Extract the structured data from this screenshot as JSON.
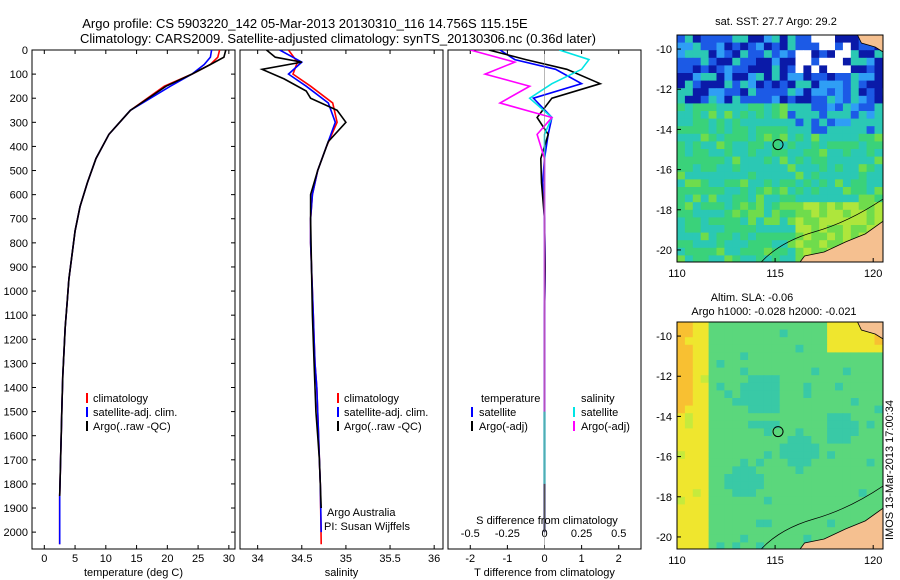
{
  "header": {
    "title_line1": "Argo profile: CS 5903220_142 05-Mar-2013 20130310_116 14.756S 115.15E",
    "title_line2": "Climatology: CARS2009. Satellite-adjusted climatology: synTS_20130306.nc (0.36d later)"
  },
  "side_label": "IMOS 13-Mar-2013 17:00:34",
  "colors": {
    "climatology": "#ff0000",
    "satellite": "#0000ff",
    "argo": "#000000",
    "satellite_s": "#00e5e5",
    "argo_s": "#ff00ff"
  },
  "chart_data": [
    {
      "type": "line",
      "id": "temperature",
      "xlabel": "temperature (deg C)",
      "ylabel": "",
      "xlim": [
        -2,
        31
      ],
      "ylim": [
        2070,
        0
      ],
      "xticks": [
        0,
        5,
        10,
        15,
        20,
        25,
        30
      ],
      "xtick_labels": [
        "0",
        "5",
        "10",
        "15",
        "20",
        "25",
        "30"
      ],
      "yticks": [
        0,
        100,
        200,
        300,
        400,
        500,
        600,
        700,
        800,
        900,
        1000,
        1100,
        1200,
        1300,
        1400,
        1500,
        1600,
        1700,
        1800,
        1900,
        2000
      ],
      "ytick_labels": [
        "0",
        "100",
        "200",
        "300",
        "400",
        "500",
        "600",
        "700",
        "800",
        "900",
        "1000",
        "1100",
        "1200",
        "1300",
        "1400",
        "1500",
        "1600",
        "1700",
        "1800",
        "1900",
        "2000"
      ],
      "legend": [
        "climatology",
        "satellite-adj. clim.",
        "Argo(..raw -QC)"
      ],
      "series": [
        {
          "name": "climatology",
          "color": "#ff0000",
          "x": [
            28.5,
            28.2,
            27,
            24,
            19.5,
            14,
            10.5,
            8.4,
            7,
            5.8,
            5,
            4.5,
            4,
            3.7,
            3.4,
            3.2,
            3,
            2.9,
            2.8,
            2.7,
            2.6,
            2.5,
            2.5
          ],
          "depth": [
            0,
            30,
            60,
            100,
            150,
            250,
            350,
            450,
            550,
            650,
            750,
            850,
            950,
            1050,
            1150,
            1250,
            1350,
            1450,
            1550,
            1650,
            1750,
            1850,
            2050
          ]
        },
        {
          "name": "satellite-adj. clim.",
          "color": "#0000ff",
          "x": [
            27.2,
            27,
            26,
            24,
            20.5,
            14,
            10.5,
            8.4,
            7,
            5.8,
            5,
            4.5,
            4,
            3.7,
            3.4,
            3.2,
            3,
            2.9,
            2.8,
            2.7,
            2.6,
            2.5,
            2.5
          ],
          "depth": [
            0,
            30,
            60,
            100,
            150,
            250,
            350,
            450,
            550,
            650,
            750,
            850,
            950,
            1050,
            1150,
            1250,
            1350,
            1450,
            1550,
            1650,
            1750,
            1850,
            2050
          ]
        },
        {
          "name": "Argo(..raw -QC)",
          "color": "#000000",
          "x": [
            29.5,
            29.2,
            27,
            24,
            19.8,
            14,
            10.5,
            8.4,
            7,
            5.8,
            5,
            4.5,
            4,
            3.7,
            3.4,
            3.2,
            3,
            2.9,
            2.8,
            2.7,
            2.6,
            2.5
          ],
          "depth": [
            0,
            30,
            60,
            100,
            150,
            250,
            350,
            450,
            550,
            650,
            750,
            850,
            950,
            1050,
            1150,
            1250,
            1350,
            1450,
            1550,
            1650,
            1750,
            1850
          ]
        }
      ]
    },
    {
      "type": "line",
      "id": "salinity",
      "xlabel": "salinity",
      "xlim": [
        33.8,
        36.1
      ],
      "ylim": [
        2070,
        0
      ],
      "xticks": [
        34,
        34.5,
        35,
        35.5,
        36
      ],
      "xtick_labels": [
        "34",
        "34.5",
        "35",
        "35.5",
        "36"
      ],
      "legend": [
        "climatology",
        "satellite-adj. clim.",
        "Argo(..raw -QC)"
      ],
      "annotation_line1": "Argo Australia",
      "annotation_line2": "PI: Susan Wijffels",
      "series": [
        {
          "name": "climatology",
          "color": "#ff0000",
          "x": [
            34.35,
            34.45,
            34.4,
            34.6,
            34.85,
            34.9,
            34.78,
            34.68,
            34.62,
            34.6,
            34.6,
            34.61,
            34.62,
            34.63,
            34.64,
            34.65,
            34.67,
            34.68,
            34.69,
            34.7,
            34.71,
            34.72
          ],
          "depth": [
            0,
            50,
            100,
            150,
            220,
            300,
            400,
            500,
            600,
            700,
            800,
            900,
            1000,
            1100,
            1200,
            1300,
            1400,
            1500,
            1600,
            1700,
            1800,
            2050
          ]
        },
        {
          "name": "satellite-adj. clim.",
          "color": "#0000ff",
          "x": [
            34.25,
            34.5,
            34.35,
            34.55,
            34.8,
            34.88,
            34.78,
            34.68,
            34.62,
            34.6,
            34.6,
            34.61,
            34.62,
            34.63,
            34.64,
            34.65,
            34.67,
            34.68,
            34.69,
            34.7,
            34.71,
            34.72
          ],
          "depth": [
            0,
            50,
            100,
            150,
            220,
            300,
            400,
            500,
            600,
            700,
            800,
            900,
            1000,
            1100,
            1200,
            1300,
            1400,
            1500,
            1600,
            1700,
            1800,
            2000
          ]
        },
        {
          "name": "Argo(..raw -QC)",
          "color": "#000000",
          "x": [
            34.1,
            34.2,
            34.5,
            34.05,
            34.3,
            34.55,
            34.6,
            34.9,
            35,
            34.8,
            34.68,
            34.6,
            34.6,
            34.61,
            34.62,
            34.64,
            34.66,
            34.68,
            34.7,
            34.71,
            34.72
          ],
          "depth": [
            0,
            30,
            50,
            80,
            120,
            170,
            200,
            250,
            300,
            380,
            500,
            600,
            700,
            900,
            1100,
            1300,
            1500,
            1600,
            1700,
            1800,
            1900
          ]
        }
      ]
    },
    {
      "type": "line",
      "id": "difference",
      "xlabel": "T difference from climatology",
      "xlabel_top": "S difference from climatology",
      "xlim": [
        -2.6,
        2.6
      ],
      "ylim": [
        2070,
        0
      ],
      "xticks": [
        -2,
        -1,
        0,
        1,
        2
      ],
      "xtick_labels": [
        "-2",
        "-1",
        "0",
        "1",
        "2"
      ],
      "s_ticks": [
        -0.5,
        -0.25,
        0,
        0.25,
        0.5
      ],
      "s_tick_labels": [
        "-0.5",
        "-0.25",
        "0",
        "0.25",
        "0.5"
      ],
      "legend_titles": [
        "temperature",
        "salinity"
      ],
      "legend": [
        "satellite",
        "Argo(-adj)",
        "satellite",
        "Argo(-adj)"
      ],
      "series": [
        {
          "name": "temperature satellite",
          "color": "#0000ff",
          "x": [
            -1.2,
            -0.8,
            0.3,
            1,
            -0.3,
            0.2,
            0.1,
            0,
            -0.05,
            0,
            0.02,
            0,
            0,
            0,
            0,
            0,
            0
          ],
          "depth": [
            0,
            40,
            80,
            140,
            200,
            280,
            350,
            450,
            550,
            700,
            900,
            1100,
            1300,
            1500,
            1700,
            1900,
            2000
          ]
        },
        {
          "name": "temperature Argo(-adj)",
          "color": "#000000",
          "x": [
            -1.5,
            -0.5,
            0.6,
            1.5,
            0.2,
            -0.2,
            0.1,
            -0.1,
            -0.08,
            0,
            0.02,
            0,
            0,
            0,
            0,
            0,
            0
          ],
          "depth": [
            0,
            40,
            80,
            140,
            200,
            280,
            350,
            450,
            550,
            700,
            900,
            1100,
            1300,
            1500,
            1700,
            1900,
            2000
          ]
        },
        {
          "name": "salinity satellite",
          "color": "#00e5e5",
          "x": [
            0.1,
            0.3,
            0.25,
            0.05,
            -0.1,
            0.05,
            0,
            0,
            0,
            0,
            0,
            0,
            0,
            0,
            0
          ],
          "depth": [
            0,
            40,
            80,
            140,
            200,
            280,
            350,
            450,
            550,
            700,
            900,
            1100,
            1300,
            1500,
            1800
          ]
        },
        {
          "name": "salinity Argo(-adj)",
          "color": "#ff00ff",
          "x": [
            -0.5,
            -0.2,
            -0.4,
            -0.1,
            -0.3,
            0.05,
            -0.05,
            0,
            0,
            0,
            0,
            0,
            0,
            0
          ],
          "depth": [
            0,
            50,
            100,
            150,
            220,
            280,
            350,
            450,
            550,
            700,
            900,
            1100,
            1300,
            1500
          ]
        }
      ]
    },
    {
      "type": "heatmap",
      "id": "sst_map",
      "title": "sat. SST: 27.7  Argo: 29.2",
      "xlim": [
        110,
        120.5
      ],
      "ylim": [
        -20.6,
        -9.3
      ],
      "xticks": [
        110,
        115,
        120
      ],
      "xtick_labels": [
        "110",
        "115",
        "120"
      ],
      "yticks": [
        -10,
        -12,
        -14,
        -16,
        -18,
        -20
      ],
      "ytick_labels": [
        "-10",
        "-12",
        "-14",
        "-16",
        "-18",
        "-20"
      ],
      "marker": {
        "lon": 115.15,
        "lat": -14.756
      },
      "palette": [
        "#0a1aa8",
        "#1c5ae6",
        "#2f9ef5",
        "#2bc8b4",
        "#3ad27a",
        "#6fdc4c",
        "#aee63c"
      ]
    },
    {
      "type": "heatmap",
      "id": "sla_map",
      "title_line1": "Altim. SLA: -0.06",
      "title_line2": "Argo h1000: -0.028  h2000: -0.021",
      "xlim": [
        110,
        120.5
      ],
      "ylim": [
        -20.6,
        -9.3
      ],
      "xticks": [
        110,
        115,
        120
      ],
      "xtick_labels": [
        "110",
        "115",
        "120"
      ],
      "yticks": [
        -10,
        -12,
        -14,
        -16,
        -18,
        -20
      ],
      "ytick_labels": [
        "-10",
        "-12",
        "-14",
        "-16",
        "-18",
        "-20"
      ],
      "marker": {
        "lon": 115.15,
        "lat": -14.756
      },
      "palette": [
        "#39c9a6",
        "#5bd77c",
        "#8fe05a",
        "#c6ea3c",
        "#efe62e",
        "#f8c032"
      ]
    }
  ]
}
